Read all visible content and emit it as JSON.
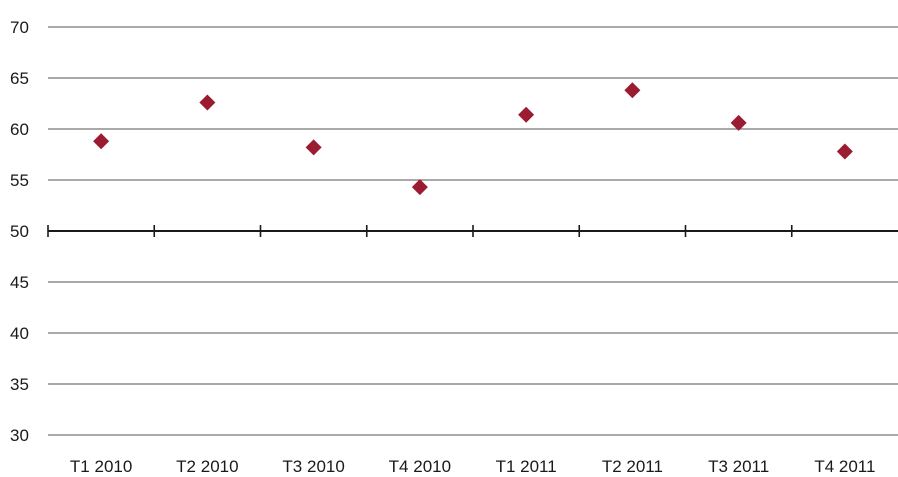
{
  "chart_data": {
    "type": "scatter",
    "categories": [
      "T1 2010",
      "T2 2010",
      "T3 2010",
      "T4 2010",
      "T1 2011",
      "T2 2011",
      "T3 2011",
      "T4 2011"
    ],
    "series": [
      {
        "values": [
          58.8,
          62.6,
          58.2,
          54.3,
          61.4,
          63.8,
          60.6,
          57.8
        ],
        "color": "#9b1b30",
        "marker": "diamond"
      }
    ],
    "ylim": [
      30,
      70
    ],
    "yticks": [
      "30",
      "35",
      "40",
      "45",
      "50",
      "55",
      "60",
      "65",
      "70"
    ],
    "baseline": 50,
    "grid": true,
    "legend": "none"
  }
}
